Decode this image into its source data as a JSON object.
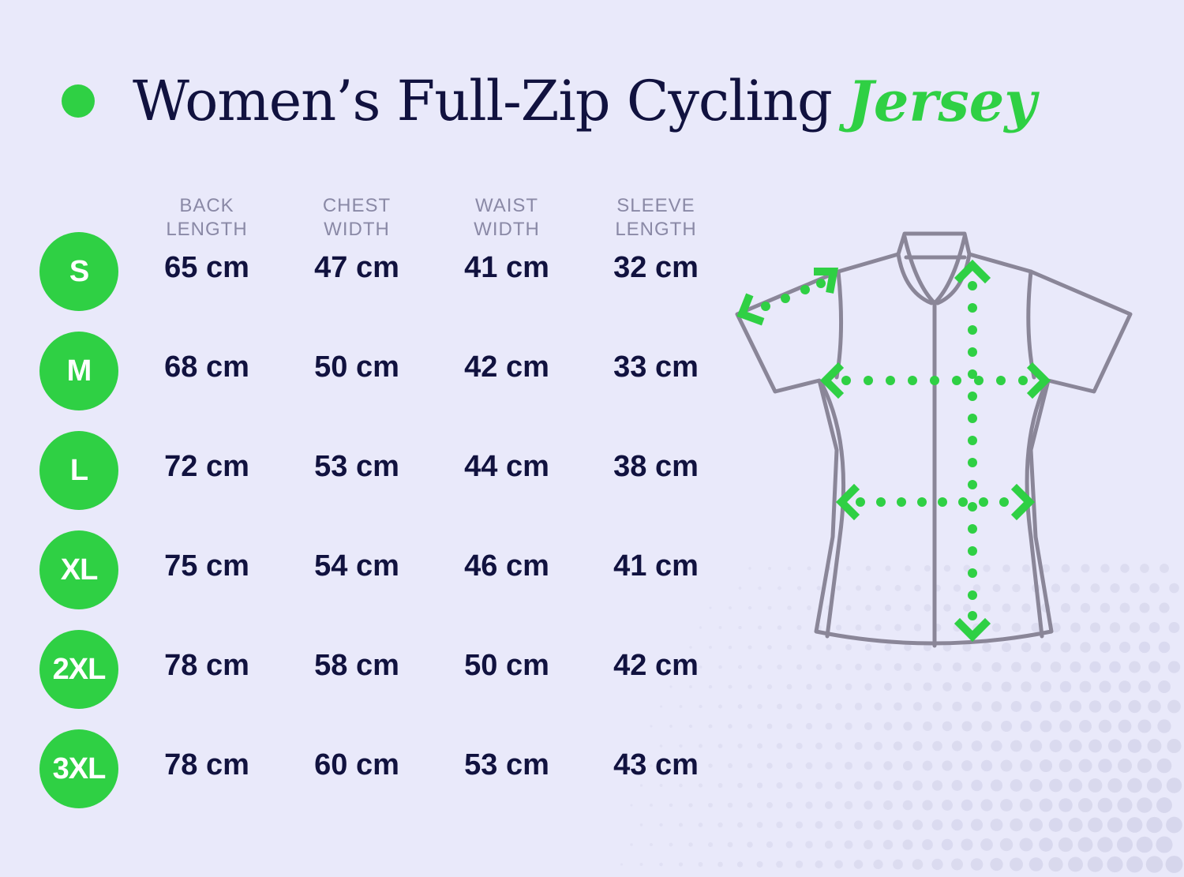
{
  "title": {
    "main": "Women’s Full-Zip Cycling",
    "accent": "Jersey"
  },
  "columns": [
    {
      "line1": "BACK",
      "line2": "LENGTH"
    },
    {
      "line1": "CHEST",
      "line2": "WIDTH"
    },
    {
      "line1": "WAIST",
      "line2": "WIDTH"
    },
    {
      "line1": "SLEEVE",
      "line2": "LENGTH"
    }
  ],
  "sizes": [
    {
      "size": "S",
      "back_length": "65 cm",
      "chest_width": "47 cm",
      "waist_width": "41 cm",
      "sleeve_length": "32 cm"
    },
    {
      "size": "M",
      "back_length": "68 cm",
      "chest_width": "50 cm",
      "waist_width": "42 cm",
      "sleeve_length": "33 cm"
    },
    {
      "size": "L",
      "back_length": "72 cm",
      "chest_width": "53 cm",
      "waist_width": "44 cm",
      "sleeve_length": "38 cm"
    },
    {
      "size": "XL",
      "back_length": "75 cm",
      "chest_width": "54 cm",
      "waist_width": "46 cm",
      "sleeve_length": "41 cm"
    },
    {
      "size": "2XL",
      "back_length": "78 cm",
      "chest_width": "58 cm",
      "waist_width": "50 cm",
      "sleeve_length": "42 cm"
    },
    {
      "size": "3XL",
      "back_length": "78 cm",
      "chest_width": "60 cm",
      "waist_width": "53 cm",
      "sleeve_length": "43 cm"
    }
  ],
  "colors": {
    "background": "#e9e9fa",
    "accent_green": "#2fd044",
    "text_navy": "#11123f",
    "header_gray": "#8a89a6",
    "jersey_outline": "#8a8698",
    "halftone_dots": "#d4d4ea"
  },
  "illustration": {
    "icon": "jersey-measurement-diagram",
    "measurements_shown": [
      "sleeve-length",
      "chest-width",
      "waist-width",
      "back-length"
    ]
  }
}
